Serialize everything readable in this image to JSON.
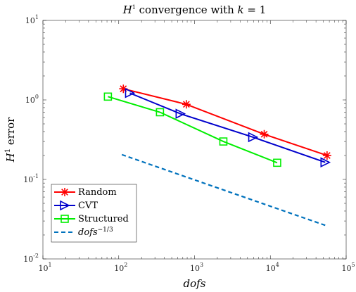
{
  "chart_data": {
    "type": "line",
    "title_parts": {
      "H": "H",
      "sup": "1",
      "rest": " convergence with ",
      "k": "k",
      "eq": " = 1"
    },
    "xlabel": "dofs",
    "ylabel_parts": {
      "H": "H",
      "sup": "1",
      "rest": " error"
    },
    "xscale": "log",
    "yscale": "log",
    "xlim": [
      10,
      100000
    ],
    "ylim": [
      0.01,
      10
    ],
    "x_ticks": [
      {
        "base": "10",
        "exp": "1"
      },
      {
        "base": "10",
        "exp": "2"
      },
      {
        "base": "10",
        "exp": "3"
      },
      {
        "base": "10",
        "exp": "4"
      },
      {
        "base": "10",
        "exp": "5"
      }
    ],
    "y_ticks": [
      {
        "base": "10",
        "exp": "-2"
      },
      {
        "base": "10",
        "exp": "-1"
      },
      {
        "base": "10",
        "exp": "0"
      },
      {
        "base": "10",
        "exp": "1"
      }
    ],
    "legend_position": "bottom-left",
    "series": [
      {
        "name": "Random",
        "marker": "asterisk",
        "color": "#ff0000",
        "dash": "solid",
        "x": [
          115,
          780,
          8300,
          56000
        ],
        "y": [
          1.38,
          0.88,
          0.37,
          0.2
        ]
      },
      {
        "name": "CVT",
        "marker": "triangle-right",
        "color": "#0000cc",
        "dash": "solid",
        "x": [
          140,
          650,
          5900,
          53000
        ],
        "y": [
          1.22,
          0.67,
          0.34,
          0.164
        ]
      },
      {
        "name": "Structured",
        "marker": "square",
        "color": "#00ee00",
        "dash": "solid",
        "x": [
          72,
          350,
          2400,
          12300
        ],
        "y": [
          1.1,
          0.7,
          0.3,
          0.162
        ]
      },
      {
        "name_parts": {
          "base": "dofs",
          "exp": "−1/3"
        },
        "marker": "none",
        "color": "#0072bd",
        "dash": "dashed",
        "x": [
          110,
          56000
        ],
        "y": [
          0.205,
          0.026
        ]
      }
    ]
  }
}
